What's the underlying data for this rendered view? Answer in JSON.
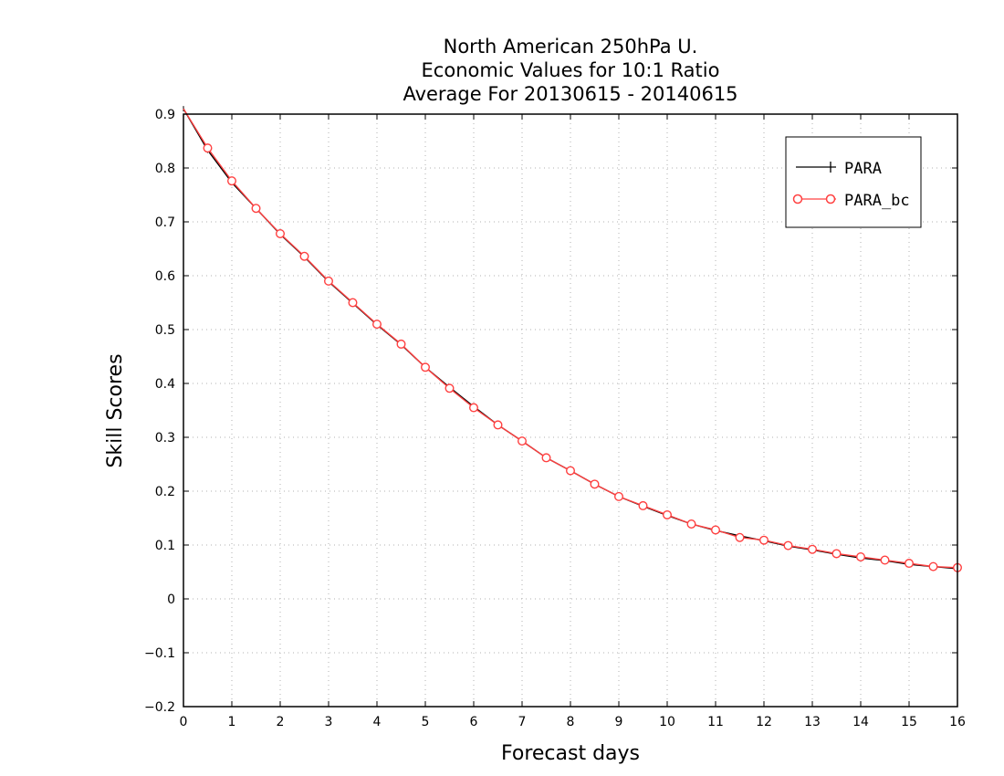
{
  "chart_data": {
    "type": "line",
    "title_lines": [
      "North American 250hPa U.",
      "Economic Values for 10:1 Ratio",
      "Average For 20130615 - 20140615"
    ],
    "xlabel": "Forecast days",
    "ylabel": "Skill Scores",
    "xlim": [
      0,
      16
    ],
    "ylim": [
      -0.2,
      0.9
    ],
    "x_ticks": [
      0,
      1,
      2,
      3,
      4,
      5,
      6,
      7,
      8,
      9,
      10,
      11,
      12,
      13,
      14,
      15,
      16
    ],
    "y_ticks": [
      -0.2,
      -0.1,
      0,
      0.1,
      0.2,
      0.3,
      0.4,
      0.5,
      0.6,
      0.7,
      0.8,
      0.9
    ],
    "y_tick_labels": [
      "−0.2",
      "−0.1",
      "0",
      "0.1",
      "0.2",
      "0.3",
      "0.4",
      "0.5",
      "0.6",
      "0.7",
      "0.8",
      "0.9"
    ],
    "grid": true,
    "legend_position": "top-right",
    "x": [
      0,
      0.5,
      1,
      1.5,
      2,
      2.5,
      3,
      3.5,
      4,
      4.5,
      5,
      5.5,
      6,
      6.5,
      7,
      7.5,
      8,
      8.5,
      9,
      9.5,
      10,
      10.5,
      11,
      11.5,
      12,
      12.5,
      13,
      13.5,
      14,
      14.5,
      15,
      15.5,
      16
    ],
    "series": [
      {
        "name": "PARA",
        "color": "#000000",
        "marker": "plus",
        "values": [
          0.91,
          0.833,
          0.773,
          0.725,
          0.677,
          0.635,
          0.589,
          0.549,
          0.509,
          0.472,
          0.43,
          0.393,
          0.357,
          0.323,
          0.293,
          0.262,
          0.238,
          0.213,
          0.19,
          0.172,
          0.155,
          0.139,
          0.127,
          0.117,
          0.108,
          0.098,
          0.091,
          0.083,
          0.076,
          0.071,
          0.064,
          0.06,
          0.056
        ]
      },
      {
        "name": "PARA_bc",
        "color": "#ff4040",
        "marker": "circle",
        "values": [
          0.91,
          0.837,
          0.776,
          0.725,
          0.678,
          0.636,
          0.59,
          0.55,
          0.51,
          0.473,
          0.43,
          0.391,
          0.355,
          0.323,
          0.293,
          0.262,
          0.238,
          0.213,
          0.19,
          0.173,
          0.156,
          0.139,
          0.128,
          0.114,
          0.109,
          0.099,
          0.092,
          0.084,
          0.078,
          0.072,
          0.066,
          0.06,
          0.058
        ]
      }
    ]
  }
}
